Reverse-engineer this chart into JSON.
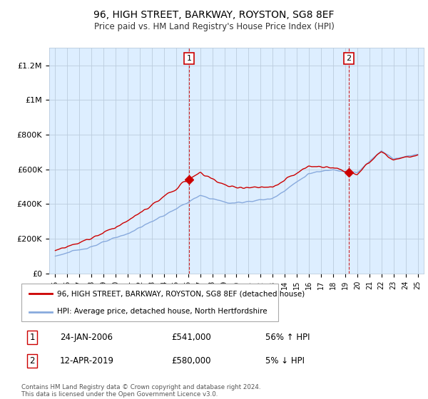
{
  "title": "96, HIGH STREET, BARKWAY, ROYSTON, SG8 8EF",
  "subtitle": "Price paid vs. HM Land Registry's House Price Index (HPI)",
  "legend_line1": "96, HIGH STREET, BARKWAY, ROYSTON, SG8 8EF (detached house)",
  "legend_line2": "HPI: Average price, detached house, North Hertfordshire",
  "transaction1_date": "24-JAN-2006",
  "transaction1_price": "£541,000",
  "transaction1_hpi": "56% ↑ HPI",
  "transaction1_year": 2006.07,
  "transaction1_price_val": 541000,
  "transaction2_date": "12-APR-2019",
  "transaction2_price": "£580,000",
  "transaction2_hpi": "5% ↓ HPI",
  "transaction2_year": 2019.28,
  "transaction2_price_val": 580000,
  "footer": "Contains HM Land Registry data © Crown copyright and database right 2024.\nThis data is licensed under the Open Government Licence v3.0.",
  "ylim": [
    0,
    1300000
  ],
  "xlim_start": 1994.5,
  "xlim_end": 2025.5,
  "red_color": "#cc0000",
  "blue_color": "#88aadd",
  "bg_color": "#ddeeff",
  "grid_color": "#bbccdd"
}
